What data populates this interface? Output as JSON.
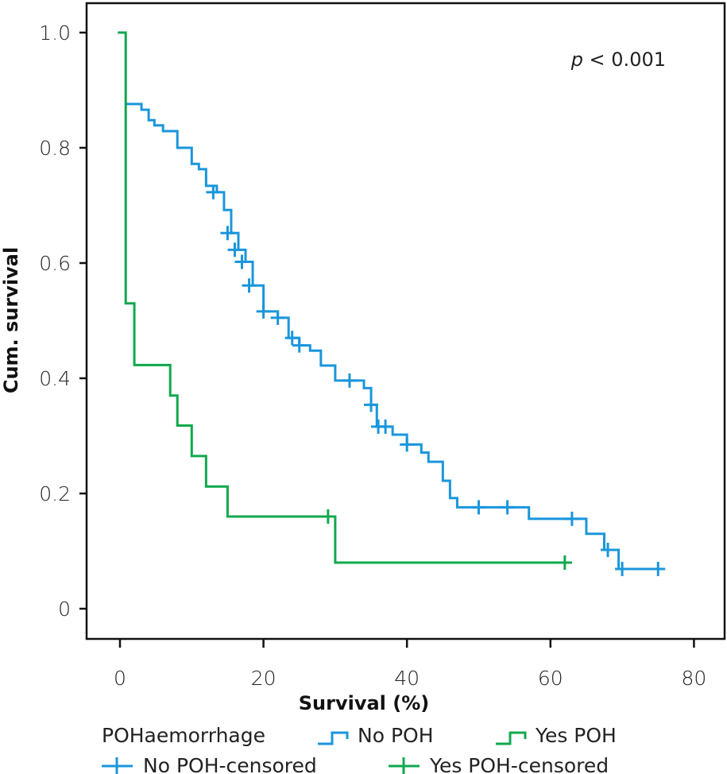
{
  "chart_data": {
    "type": "line",
    "subtype": "kaplan-meier step",
    "title": "",
    "xlabel": "Survival (%)",
    "ylabel": "Cum. survival",
    "xlim": [
      -4,
      84
    ],
    "ylim": [
      -0.05,
      1.05
    ],
    "x_ticks": [
      0,
      20,
      40,
      60,
      80
    ],
    "x_tick_labels": [
      "0",
      "20",
      "40",
      "60",
      "80"
    ],
    "y_ticks": [
      0,
      0.2,
      0.4,
      0.6,
      0.8,
      1.0
    ],
    "y_tick_labels": [
      "0",
      "0.2",
      "0.4",
      "0.6",
      "0.8",
      "1.0"
    ],
    "grid": false,
    "annotation": {
      "italic": "p",
      "text": " < 0.001",
      "position": "top-right"
    },
    "legend": {
      "placement": "bottom",
      "title": "POHaemorrhage",
      "entries": [
        {
          "label": "No POH",
          "kind": "step",
          "series": "No POH"
        },
        {
          "label": "Yes POH",
          "kind": "step",
          "series": "Yes POH"
        },
        {
          "label": "No POH-censored",
          "kind": "censor",
          "series": "No POH"
        },
        {
          "label": "Yes POH-censored",
          "kind": "censor",
          "series": "Yes POH"
        }
      ]
    },
    "series": [
      {
        "name": "No POH",
        "color": "#1a96dc",
        "steps": [
          [
            0.8,
            0.876
          ],
          [
            3.0,
            0.866
          ],
          [
            4.0,
            0.848
          ],
          [
            4.8,
            0.839
          ],
          [
            6.0,
            0.829
          ],
          [
            8.0,
            0.8
          ],
          [
            10.0,
            0.772
          ],
          [
            11.0,
            0.763
          ],
          [
            12.0,
            0.734
          ],
          [
            13.5,
            0.723
          ],
          [
            14.5,
            0.692
          ],
          [
            15.5,
            0.652
          ],
          [
            16.5,
            0.623
          ],
          [
            17.5,
            0.602
          ],
          [
            18.5,
            0.561
          ],
          [
            20.0,
            0.516
          ],
          [
            22.0,
            0.505
          ],
          [
            23.5,
            0.47
          ],
          [
            25.0,
            0.457
          ],
          [
            26.5,
            0.448
          ],
          [
            28.0,
            0.422
          ],
          [
            30.0,
            0.396
          ],
          [
            34.0,
            0.383
          ],
          [
            35.0,
            0.354
          ],
          [
            35.8,
            0.316
          ],
          [
            37.0,
            0.316
          ],
          [
            38.0,
            0.302
          ],
          [
            40.0,
            0.285
          ],
          [
            42.0,
            0.271
          ],
          [
            43.0,
            0.255
          ],
          [
            45.0,
            0.222
          ],
          [
            46.0,
            0.192
          ],
          [
            47.0,
            0.176
          ],
          [
            57.0,
            0.156
          ],
          [
            65.0,
            0.13
          ],
          [
            67.5,
            0.102
          ],
          [
            69.5,
            0.069
          ],
          [
            75.0,
            0.069
          ]
        ],
        "censored": [
          [
            13.0,
            0.723
          ],
          [
            15.0,
            0.652
          ],
          [
            16.0,
            0.623
          ],
          [
            17.0,
            0.602
          ],
          [
            18.0,
            0.561
          ],
          [
            20.0,
            0.516
          ],
          [
            22.0,
            0.505
          ],
          [
            24.0,
            0.47
          ],
          [
            25.0,
            0.457
          ],
          [
            32.0,
            0.396
          ],
          [
            35.0,
            0.354
          ],
          [
            36.0,
            0.316
          ],
          [
            37.0,
            0.316
          ],
          [
            40.0,
            0.285
          ],
          [
            50.0,
            0.176
          ],
          [
            54.0,
            0.176
          ],
          [
            63.0,
            0.156
          ],
          [
            68.0,
            0.102
          ],
          [
            70.0,
            0.069
          ],
          [
            75.0,
            0.069
          ]
        ]
      },
      {
        "name": "Yes POH",
        "color": "#10a84e",
        "steps": [
          [
            0.0,
            1.0
          ],
          [
            0.8,
            0.53
          ],
          [
            2.0,
            0.423
          ],
          [
            7.0,
            0.37
          ],
          [
            8.0,
            0.318
          ],
          [
            10.0,
            0.265
          ],
          [
            12.0,
            0.212
          ],
          [
            15.0,
            0.16
          ],
          [
            30.0,
            0.08
          ],
          [
            62.0,
            0.08
          ]
        ],
        "censored": [
          [
            29.0,
            0.16
          ],
          [
            62.0,
            0.08
          ]
        ]
      }
    ]
  }
}
